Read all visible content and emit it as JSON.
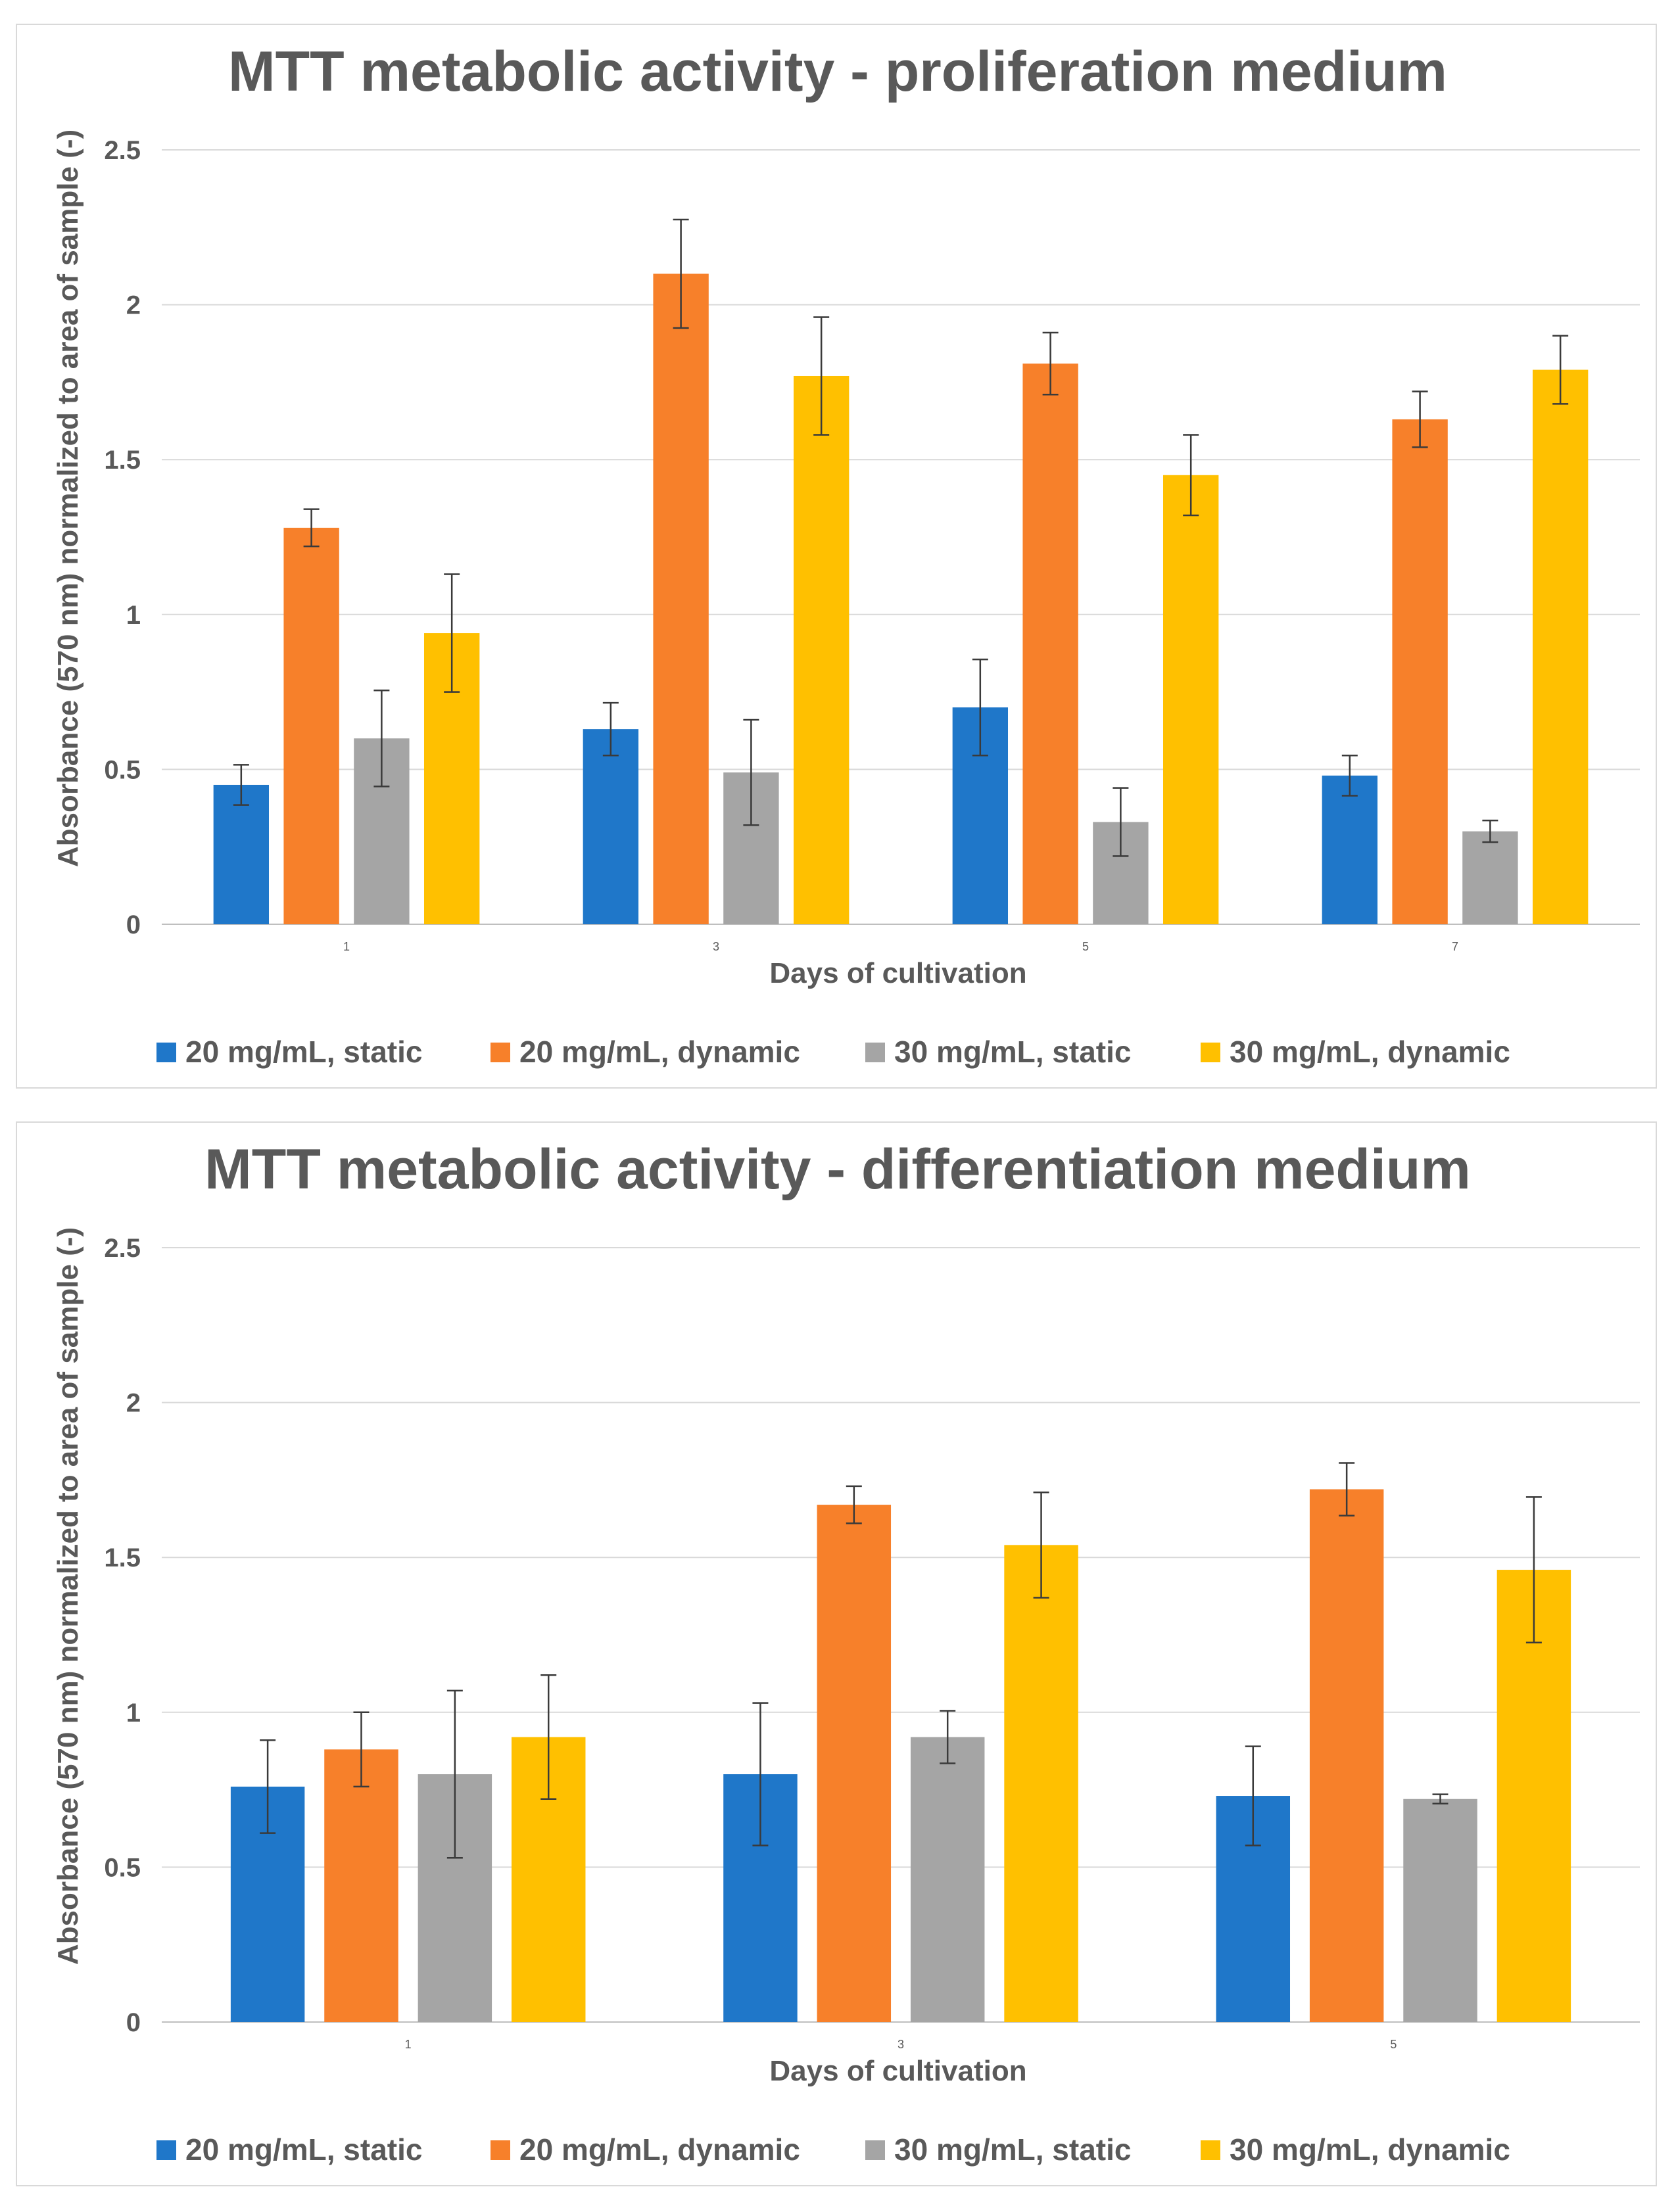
{
  "chart_data": [
    {
      "type": "bar",
      "title": "MTT metabolic activity - proliferation medium",
      "xlabel": "Days of cultivation",
      "ylabel": "Absorbance (570 nm) normalized to area of sample (-)",
      "ylim": [
        0,
        2.5
      ],
      "yticks": [
        "0",
        "0.5",
        "1",
        "1.5",
        "2",
        "2.5"
      ],
      "ytick_values": [
        0,
        0.5,
        1,
        1.5,
        2,
        2.5
      ],
      "categories": [
        "1",
        "3",
        "5",
        "7"
      ],
      "legend_position": "bottom",
      "series": [
        {
          "name": "20 mg/mL, static",
          "color": "#1f77c9",
          "values": [
            0.45,
            0.63,
            0.7,
            0.48
          ],
          "errors": [
            0.065,
            0.085,
            0.155,
            0.065
          ]
        },
        {
          "name": "20 mg/mL, dynamic",
          "color": "#f7802a",
          "values": [
            1.28,
            2.1,
            1.81,
            1.63
          ],
          "errors": [
            0.06,
            0.175,
            0.1,
            0.09
          ]
        },
        {
          "name": "30 mg/mL, static",
          "color": "#a5a5a5",
          "values": [
            0.6,
            0.49,
            0.33,
            0.3
          ],
          "errors": [
            0.155,
            0.17,
            0.11,
            0.035
          ]
        },
        {
          "name": "30 mg/mL, dynamic",
          "color": "#ffc000",
          "values": [
            0.94,
            1.77,
            1.45,
            1.79
          ],
          "errors": [
            0.19,
            0.19,
            0.13,
            0.11
          ]
        }
      ]
    },
    {
      "type": "bar",
      "title": "MTT metabolic activity - differentiation medium",
      "xlabel": "Days of cultivation",
      "ylabel": "Absorbance (570 nm) normalized to area of sample (-)",
      "ylim": [
        0,
        2.5
      ],
      "yticks": [
        "0",
        "0.5",
        "1",
        "1.5",
        "2",
        "2.5"
      ],
      "ytick_values": [
        0,
        0.5,
        1,
        1.5,
        2,
        2.5
      ],
      "categories": [
        "1",
        "3",
        "5"
      ],
      "legend_position": "bottom",
      "series": [
        {
          "name": "20 mg/mL, static",
          "color": "#1f77c9",
          "values": [
            0.76,
            0.8,
            0.73
          ],
          "errors": [
            0.15,
            0.23,
            0.16
          ]
        },
        {
          "name": "20 mg/mL, dynamic",
          "color": "#f7802a",
          "values": [
            0.88,
            1.67,
            1.72
          ],
          "errors": [
            0.12,
            0.06,
            0.085
          ]
        },
        {
          "name": "30 mg/mL, static",
          "color": "#a5a5a5",
          "values": [
            0.8,
            0.92,
            0.72
          ],
          "errors": [
            0.27,
            0.085,
            0.015
          ]
        },
        {
          "name": "30 mg/mL, dynamic",
          "color": "#ffc000",
          "values": [
            0.92,
            1.54,
            1.46
          ],
          "errors": [
            0.2,
            0.17,
            0.235
          ]
        }
      ]
    }
  ]
}
